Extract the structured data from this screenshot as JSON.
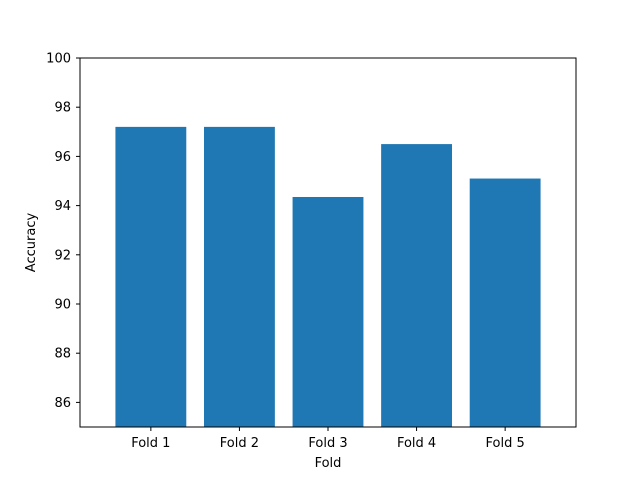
{
  "chart_data": {
    "type": "bar",
    "title": "",
    "xlabel": "Fold",
    "ylabel": "Accuracy",
    "categories": [
      "Fold 1",
      "Fold 2",
      "Fold 3",
      "Fold 4",
      "Fold 5"
    ],
    "values": [
      97.2,
      97.2,
      94.35,
      96.5,
      95.1
    ],
    "ylim": [
      85,
      100
    ],
    "yticks": [
      86,
      88,
      90,
      92,
      94,
      96,
      98,
      100
    ],
    "grid": false,
    "legend": "none",
    "bar_color": "#1f77b4"
  }
}
